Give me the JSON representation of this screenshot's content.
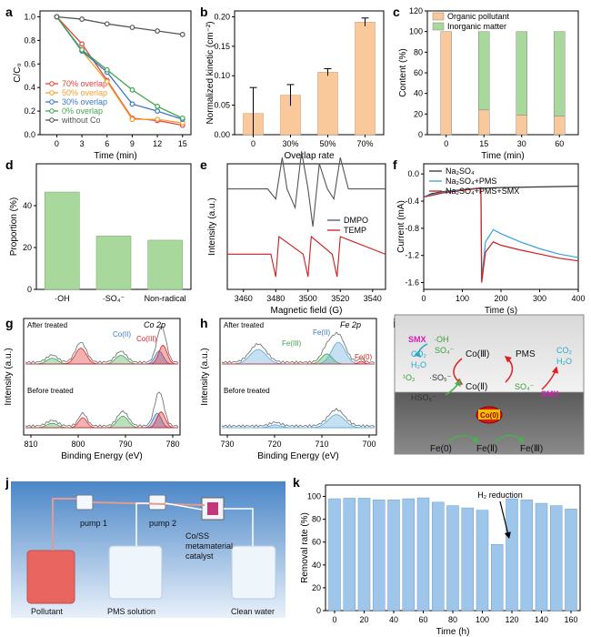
{
  "chart_data": [
    {
      "panel": "a",
      "type": "line",
      "x": [
        0,
        3,
        6,
        9,
        12,
        15
      ],
      "xlabel": "Time (min)",
      "ylabel": "C/C₀",
      "xlim": [
        -2,
        16
      ],
      "ylim": [
        0,
        1.05
      ],
      "xticks": [
        "0",
        "3",
        "6",
        "9",
        "12",
        "15"
      ],
      "yticks": [
        "0.0",
        "0.2",
        "0.4",
        "0.6",
        "0.8",
        "1.0"
      ],
      "legend_position": "bottom-left",
      "series": [
        {
          "name": "70% overlap",
          "color": "#e8413b",
          "values": [
            1.0,
            0.77,
            0.46,
            0.14,
            0.12,
            0.08
          ]
        },
        {
          "name": "50% overlap",
          "color": "#f5a02b",
          "values": [
            1.0,
            0.71,
            0.45,
            0.13,
            0.13,
            0.1
          ]
        },
        {
          "name": "30% overlap",
          "color": "#3b78c3",
          "values": [
            1.0,
            0.71,
            0.53,
            0.26,
            0.2,
            0.13
          ]
        },
        {
          "name": "0% overlap",
          "color": "#3fa64a",
          "values": [
            1.0,
            0.72,
            0.55,
            0.38,
            0.24,
            0.14
          ]
        },
        {
          "name": "without Co",
          "color": "#555555",
          "values": [
            1.0,
            0.98,
            0.94,
            0.91,
            0.88,
            0.85
          ]
        }
      ]
    },
    {
      "panel": "b",
      "type": "bar",
      "categories": [
        "0",
        "30%",
        "50%",
        "70%"
      ],
      "values": [
        0.036,
        0.067,
        0.106,
        0.191
      ],
      "errors": [
        0.044,
        0.018,
        0.006,
        0.007
      ],
      "xlabel": "Overlap rate",
      "ylabel": "Normalized kinetic (cm⁻²)",
      "ylim": [
        0,
        0.21
      ],
      "yticks": [
        "0.00",
        "0.05",
        "0.10",
        "0.15",
        "0.20"
      ],
      "color": "#f9c89b"
    },
    {
      "panel": "c",
      "type": "bar",
      "categories": [
        "0",
        "15",
        "30",
        "60"
      ],
      "xlabel": "Time (min)",
      "ylabel": "Content (%)",
      "ylim": [
        0,
        120
      ],
      "yticks": [
        "0",
        "20",
        "40",
        "60",
        "80",
        "100",
        "120"
      ],
      "legend_position": "top-left",
      "series": [
        {
          "name": "Organic pollutant",
          "color": "#f9c89b",
          "values": [
            100,
            24,
            19,
            18
          ]
        },
        {
          "name": "Inorganic matter",
          "color": "#a8d89b",
          "values": [
            0,
            76,
            81,
            82
          ]
        }
      ]
    },
    {
      "panel": "d",
      "type": "bar",
      "categories": [
        "·OH",
        "·SO₄⁻",
        "Non-radical"
      ],
      "values": [
        46.5,
        25.5,
        23.5
      ],
      "ylabel": "Proportion (%)",
      "ylim": [
        0,
        60
      ],
      "yticks": [
        "0",
        "20",
        "40"
      ],
      "color": "#a8d89b"
    },
    {
      "panel": "e",
      "type": "line",
      "xlabel": "Magnetic field (G)",
      "ylabel": "Intensity (a.u.)",
      "xlim": [
        3450,
        3548
      ],
      "xticks": [
        "3460",
        "3480",
        "3500",
        "3520",
        "3540"
      ],
      "legend_position": "center-right",
      "series": [
        {
          "name": "DMPO",
          "color": "#555555",
          "x": [
            3450,
            3475,
            3480,
            3484,
            3487,
            3492,
            3496,
            3500,
            3503,
            3507,
            3512,
            3516,
            3520,
            3525,
            3548
          ],
          "values": [
            0.8,
            0.8,
            0.72,
            1.05,
            0.8,
            0.65,
            1.1,
            0.8,
            0.5,
            1.0,
            0.8,
            0.72,
            1.05,
            0.8,
            0.8
          ]
        },
        {
          "name": "TEMP",
          "color": "#cc1f1f",
          "x": [
            3450,
            3477,
            3480,
            3482,
            3497,
            3500,
            3502,
            3515,
            3518,
            3520,
            3548
          ],
          "values": [
            0.28,
            0.28,
            0.1,
            0.42,
            0.28,
            0.1,
            0.42,
            0.28,
            0.1,
            0.42,
            0.28
          ]
        }
      ]
    },
    {
      "panel": "f",
      "type": "line",
      "xlabel": "Time (s)",
      "ylabel": "Current (mA)",
      "xlim": [
        0,
        400
      ],
      "ylim": [
        -1.7,
        0.15
      ],
      "xticks": [
        "0",
        "100",
        "200",
        "300",
        "400"
      ],
      "yticks": [
        "0.0",
        "-0.4",
        "-0.8",
        "-1.2",
        "-1.6"
      ],
      "legend_position": "top-left",
      "series": [
        {
          "name": "Na₂SO₄",
          "color": "#333333",
          "x": [
            0,
            20,
            50,
            100,
            150,
            200,
            300,
            400
          ],
          "values": [
            -0.34,
            -0.29,
            -0.26,
            -0.23,
            -0.21,
            -0.2,
            -0.19,
            -0.18
          ]
        },
        {
          "name": "Na₂SO₄+PMS",
          "color": "#3aa0d8",
          "x": [
            0,
            50,
            100,
            148,
            150,
            160,
            180,
            200,
            250,
            300,
            350,
            400
          ],
          "values": [
            -0.33,
            -0.27,
            -0.23,
            -0.2,
            -1.55,
            -1.0,
            -0.82,
            -0.88,
            -1.0,
            -1.1,
            -1.18,
            -1.23
          ]
        },
        {
          "name": "Na₂SO₄+PMS+SMX",
          "color": "#cc1f1f",
          "x": [
            0,
            50,
            100,
            148,
            150,
            160,
            180,
            200,
            250,
            300,
            350,
            400
          ],
          "values": [
            -0.34,
            -0.28,
            -0.24,
            -0.21,
            -1.6,
            -1.15,
            -1.0,
            -1.05,
            -1.12,
            -1.18,
            -1.24,
            -1.28
          ]
        }
      ]
    },
    {
      "panel": "g",
      "type": "line",
      "title": "Co 2p",
      "xlabel": "Binding Energy (eV)",
      "ylabel": "Intensity (a.u.)",
      "xticks": [
        "810",
        "800",
        "790",
        "780"
      ],
      "annotations": [
        "After treated",
        "Before treated",
        "Co(II)",
        "Co(III)"
      ]
    },
    {
      "panel": "h",
      "type": "line",
      "title": "Fe 2p",
      "xlabel": "Binding Energy (eV)",
      "ylabel": "Intensity (a.u.)",
      "xticks": [
        "730",
        "720",
        "710",
        "700"
      ],
      "annotations": [
        "After treated",
        "Before treated",
        "Fe(II)",
        "Fe(III)",
        "Fe(0)"
      ]
    },
    {
      "panel": "k",
      "type": "bar",
      "x": [
        0,
        10,
        20,
        30,
        40,
        50,
        60,
        70,
        80,
        90,
        100,
        110,
        120,
        130,
        140,
        150,
        160
      ],
      "values": [
        98,
        98.5,
        98.5,
        97,
        97,
        98,
        98.8,
        95,
        92,
        90,
        88,
        58,
        98,
        97,
        94,
        92,
        89
      ],
      "xlabel": "Time (h)",
      "ylabel": "Removal rate (%)",
      "ylim": [
        0,
        110
      ],
      "xticks": [
        "0",
        "20",
        "40",
        "60",
        "80",
        "100",
        "120",
        "140",
        "160"
      ],
      "yticks": [
        "0",
        "20",
        "40",
        "60",
        "80",
        "100"
      ],
      "annotation": "H₂ reduction",
      "color": "#9ec5ea"
    }
  ],
  "panel_labels": [
    "a",
    "b",
    "c",
    "d",
    "e",
    "f",
    "g",
    "h",
    "i",
    "j",
    "k"
  ],
  "scheme_i": {
    "smx_left": "SMX",
    "oh": "·OH",
    "so4_top": "SO₄⁻",
    "co2_left": "CO₂",
    "h2o_left": "H₂O",
    "so5": "·SO₅⁻",
    "o2": "¹O₂",
    "hso5": "HSO₅⁻",
    "co3": "Co(Ⅲ)",
    "co2": "Co(Ⅱ)",
    "pms": "PMS",
    "so4_right": "SO₄⁻",
    "co2_right": "CO₂",
    "h2o_right": "H₂O",
    "smx_right": "SMX",
    "co0": "Co(0)",
    "fe0": "Fe(0)",
    "fe2": "Fe(Ⅱ)",
    "fe3": "Fe(Ⅲ)"
  },
  "scheme_j": {
    "pump1": "pump 1",
    "pump2": "pump 2",
    "catalyst_1": "Co/SS",
    "catalyst_2": "metamaterial",
    "catalyst_3": "catalyst",
    "pollutant": "Pollutant",
    "pms_solution": "PMS solution",
    "clean_water": "Clean water"
  }
}
